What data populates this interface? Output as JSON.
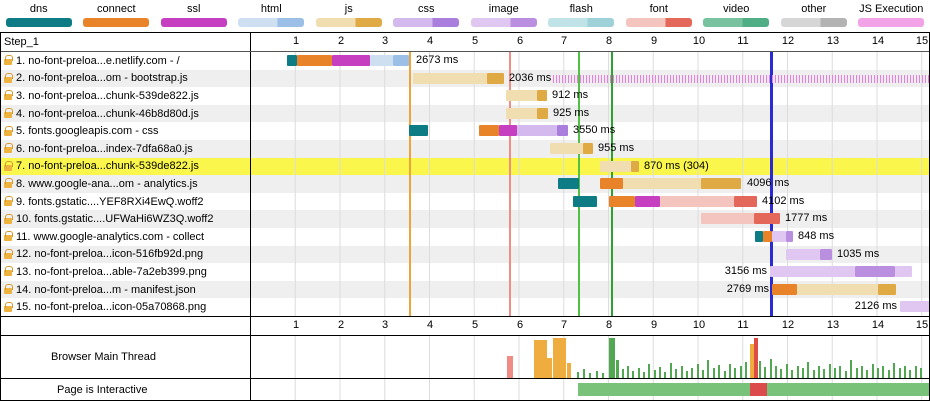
{
  "step_label": "Step_1",
  "labels": {
    "main_thread": "Browser Main Thread",
    "interactive": "Page is Interactive"
  },
  "legend": {
    "items": [
      {
        "label": "dns",
        "light": "#0d7c84",
        "dark": "#0d7c84"
      },
      {
        "label": "connect",
        "light": "#e8832a",
        "dark": "#e8832a"
      },
      {
        "label": "ssl",
        "light": "#c63fc1",
        "dark": "#c63fc1"
      },
      {
        "label": "html",
        "light": "#cfdff2",
        "dark": "#9cbfe8"
      },
      {
        "label": "js",
        "light": "#f0ddb0",
        "dark": "#dfa943"
      },
      {
        "label": "css",
        "light": "#d3b9ee",
        "dark": "#a97edc"
      },
      {
        "label": "image",
        "light": "#dfc7f2",
        "dark": "#bb8fdf"
      },
      {
        "label": "flash",
        "light": "#bfe3e6",
        "dark": "#9fd2d8"
      },
      {
        "label": "font",
        "light": "#f4c4be",
        "dark": "#e4685a"
      },
      {
        "label": "video",
        "light": "#79c2a0",
        "dark": "#4fae86"
      },
      {
        "label": "other",
        "light": "#d6d6d6",
        "dark": "#b3b3b3"
      },
      {
        "label": "JS Execution",
        "light": "#f2a3e8",
        "dark": "#f2a3e8"
      }
    ]
  },
  "colors": {
    "dns": "#0d7c84",
    "connect": "#e8832a",
    "ssl": "#c63fc1",
    "html_l": "#cfdff2",
    "html_d": "#9cbfe8",
    "js_l": "#f0ddb0",
    "js_d": "#dfa943",
    "css_l": "#d3b9ee",
    "css_d": "#a97edc",
    "img_l": "#dfc7f2",
    "img_d": "#bb8fdf",
    "font_l": "#f4c4be",
    "font_d": "#e4685a",
    "exec": "#f07ae3",
    "orange": "#f0ad3f",
    "green": "#51a851",
    "salmon": "#ef8d85",
    "red": "#de4d44",
    "igreen": "#79c279",
    "ired": "#dc4b4b"
  },
  "chart_data": {
    "type": "bar",
    "x_axis_unit": "seconds",
    "x_ticks": [
      1,
      2,
      3,
      4,
      5,
      6,
      7,
      8,
      9,
      10,
      11,
      12,
      13,
      14,
      15
    ],
    "requests": [
      {
        "label": "1. no-font-preloa...e.netlify.com - /",
        "time": "2673 ms",
        "ms": 2673,
        "label_t": 3.62,
        "segments": [
          {
            "t0": 0.8,
            "t1": 1.02,
            "c": "dns"
          },
          {
            "t0": 1.02,
            "t1": 1.8,
            "c": "connect"
          },
          {
            "t0": 1.8,
            "t1": 2.65,
            "c": "ssl"
          },
          {
            "t0": 2.65,
            "t1": 3.18,
            "c": "html_l"
          },
          {
            "t0": 3.18,
            "t1": 3.52,
            "c": "html_d"
          }
        ]
      },
      {
        "label": "2. no-font-preloa...om - bootstrap.js",
        "time": "2036 ms",
        "ms": 2036,
        "label_t": 5.7,
        "segments": [
          {
            "t0": 3.62,
            "t1": 5.28,
            "c": "js_l"
          },
          {
            "t0": 5.28,
            "t1": 5.66,
            "c": "js_d"
          },
          {
            "t0": 6.75,
            "t1": 15.2,
            "c": "exec"
          }
        ]
      },
      {
        "label": "3. no-font-preloa...chunk-539de822.js",
        "time": "912 ms",
        "ms": 912,
        "label_t": 6.66,
        "segments": [
          {
            "t0": 5.7,
            "t1": 6.38,
            "c": "js_l"
          },
          {
            "t0": 6.38,
            "t1": 6.61,
            "c": "js_d"
          }
        ]
      },
      {
        "label": "4. no-font-preloa...chunk-46b8d80d.js",
        "time": "925 ms",
        "ms": 925,
        "label_t": 6.68,
        "segments": [
          {
            "t0": 5.7,
            "t1": 6.4,
            "c": "js_l"
          },
          {
            "t0": 6.4,
            "t1": 6.63,
            "c": "js_d"
          }
        ]
      },
      {
        "label": "5. fonts.googleapis.com - css",
        "time": "3550 ms",
        "ms": 3550,
        "label_t": 7.12,
        "segments": [
          {
            "t0": 3.53,
            "t1": 3.95,
            "c": "dns"
          },
          {
            "t0": 5.1,
            "t1": 5.55,
            "c": "connect"
          },
          {
            "t0": 5.55,
            "t1": 5.95,
            "c": "ssl"
          },
          {
            "t0": 5.95,
            "t1": 6.83,
            "c": "css_l"
          },
          {
            "t0": 6.83,
            "t1": 7.08,
            "c": "css_d"
          }
        ]
      },
      {
        "label": "6. no-font-preloa...index-7dfa68a0.js",
        "time": "955 ms",
        "ms": 955,
        "label_t": 7.68,
        "segments": [
          {
            "t0": 6.68,
            "t1": 7.42,
            "c": "js_l"
          },
          {
            "t0": 7.42,
            "t1": 7.64,
            "c": "js_d"
          }
        ]
      },
      {
        "label": "7. no-font-preloa...chunk-539de822.js",
        "time": "870 ms (304)",
        "ms": 870,
        "label_t": 8.72,
        "highlight": true,
        "segments": [
          {
            "t0": 7.8,
            "t1": 8.5,
            "c": "js_l"
          },
          {
            "t0": 8.5,
            "t1": 8.67,
            "c": "js_d"
          }
        ]
      },
      {
        "label": "8. www.google-ana...om - analytics.js",
        "time": "4096 ms",
        "ms": 4096,
        "label_t": 11.02,
        "segments": [
          {
            "t0": 6.85,
            "t1": 7.33,
            "c": "dns"
          },
          {
            "t0": 7.8,
            "t1": 8.32,
            "c": "connect"
          },
          {
            "t0": 8.32,
            "t1": 10.05,
            "c": "js_l"
          },
          {
            "t0": 10.05,
            "t1": 10.95,
            "c": "js_d"
          }
        ]
      },
      {
        "label": "9. fonts.gstatic....YEF8RXi4EwQ.woff2",
        "time": "4102 ms",
        "ms": 4102,
        "label_t": 11.35,
        "segments": [
          {
            "t0": 7.2,
            "t1": 7.74,
            "c": "dns"
          },
          {
            "t0": 8.0,
            "t1": 8.58,
            "c": "connect"
          },
          {
            "t0": 8.58,
            "t1": 9.14,
            "c": "ssl"
          },
          {
            "t0": 9.14,
            "t1": 10.8,
            "c": "font_l"
          },
          {
            "t0": 10.8,
            "t1": 11.3,
            "c": "font_d"
          }
        ]
      },
      {
        "label": "10. fonts.gstatic....UFWaHi6WZ3Q.woff2",
        "time": "1777 ms",
        "ms": 1777,
        "label_t": 11.87,
        "segments": [
          {
            "t0": 10.05,
            "t1": 11.25,
            "c": "font_l"
          },
          {
            "t0": 11.25,
            "t1": 11.83,
            "c": "font_d"
          }
        ]
      },
      {
        "label": "11. www.google-analytics.com - collect",
        "time": "848 ms",
        "ms": 848,
        "label_t": 12.15,
        "segments": [
          {
            "t0": 11.27,
            "t1": 11.45,
            "c": "dns"
          },
          {
            "t0": 11.45,
            "t1": 11.65,
            "c": "connect"
          },
          {
            "t0": 11.65,
            "t1": 11.95,
            "c": "img_l"
          },
          {
            "t0": 11.95,
            "t1": 12.12,
            "c": "img_d"
          }
        ]
      },
      {
        "label": "12. no-font-preloa...icon-516fb92d.png",
        "time": "1035 ms",
        "ms": 1035,
        "label_t": 13.02,
        "segments": [
          {
            "t0": 11.95,
            "t1": 12.72,
            "c": "img_l"
          },
          {
            "t0": 12.72,
            "t1": 12.99,
            "c": "img_d"
          }
        ]
      },
      {
        "label": "13. no-font-preloa...able-7a2eb399.png",
        "time": "3156 ms",
        "ms": 3156,
        "label_t": 11.6,
        "label_before": true,
        "segments": [
          {
            "t0": 11.6,
            "t1": 13.5,
            "c": "img_l"
          },
          {
            "t0": 13.5,
            "t1": 14.4,
            "c": "img_d"
          },
          {
            "t0": 14.4,
            "t1": 14.76,
            "c": "img_l"
          }
        ]
      },
      {
        "label": "14. no-font-preloa...m - manifest.json",
        "time": "2769 ms",
        "ms": 2769,
        "label_t": 11.65,
        "label_before": true,
        "segments": [
          {
            "t0": 11.65,
            "t1": 12.2,
            "c": "connect"
          },
          {
            "t0": 12.2,
            "t1": 14.0,
            "c": "js_l"
          },
          {
            "t0": 14.0,
            "t1": 14.42,
            "c": "js_d"
          }
        ]
      },
      {
        "label": "15. no-font-preloa...icon-05a70868.png",
        "time": "2126 ms",
        "ms": 2126,
        "label_t": 14.5,
        "label_before": true,
        "segments": [
          {
            "t0": 14.5,
            "t1": 15.2,
            "c": "img_l"
          }
        ]
      }
    ],
    "events": [
      {
        "t": 3.53,
        "color": "#eea33c",
        "w": 2
      },
      {
        "t": 5.77,
        "color": "#f08d86",
        "w": 2
      },
      {
        "t": 7.31,
        "color": "#52c143",
        "w": 2
      },
      {
        "t": 8.05,
        "color": "#2ca32c",
        "w": 2
      },
      {
        "t": 11.6,
        "color": "#2b2bd6",
        "w": 3
      }
    ],
    "main_thread_bars": [
      [
        5.72,
        0.14,
        0.55,
        "salmon"
      ],
      [
        6.33,
        0.28,
        0.95,
        "orange"
      ],
      [
        6.62,
        0.12,
        0.5,
        "orange"
      ],
      [
        6.75,
        0.3,
        1.0,
        "orange"
      ],
      [
        7.06,
        0.1,
        0.38,
        "orange"
      ],
      [
        7.28,
        0.05,
        0.15,
        "green"
      ],
      [
        7.42,
        0.05,
        0.22,
        "green"
      ],
      [
        7.56,
        0.05,
        0.12,
        "green"
      ],
      [
        7.7,
        0.05,
        0.18,
        "green"
      ],
      [
        7.84,
        0.05,
        0.12,
        "green"
      ],
      [
        8.0,
        0.13,
        1.0,
        "green"
      ],
      [
        8.15,
        0.07,
        0.45,
        "green"
      ],
      [
        8.28,
        0.05,
        0.22,
        "green"
      ],
      [
        8.4,
        0.05,
        0.3,
        "green"
      ],
      [
        8.52,
        0.05,
        0.18,
        "green"
      ],
      [
        8.64,
        0.05,
        0.26,
        "green"
      ],
      [
        8.76,
        0.05,
        0.15,
        "green"
      ],
      [
        8.88,
        0.05,
        0.34,
        "green"
      ],
      [
        9.0,
        0.05,
        0.2,
        "green"
      ],
      [
        9.12,
        0.05,
        0.28,
        "green"
      ],
      [
        9.24,
        0.05,
        0.16,
        "green"
      ],
      [
        9.36,
        0.05,
        0.38,
        "green"
      ],
      [
        9.48,
        0.05,
        0.22,
        "green"
      ],
      [
        9.6,
        0.05,
        0.3,
        "green"
      ],
      [
        9.72,
        0.05,
        0.18,
        "green"
      ],
      [
        9.84,
        0.05,
        0.26,
        "green"
      ],
      [
        9.96,
        0.05,
        0.34,
        "green"
      ],
      [
        10.08,
        0.05,
        0.2,
        "green"
      ],
      [
        10.2,
        0.05,
        0.44,
        "green"
      ],
      [
        10.32,
        0.05,
        0.24,
        "green"
      ],
      [
        10.44,
        0.05,
        0.32,
        "green"
      ],
      [
        10.56,
        0.05,
        0.18,
        "green"
      ],
      [
        10.68,
        0.05,
        0.36,
        "green"
      ],
      [
        10.8,
        0.05,
        0.24,
        "green"
      ],
      [
        10.92,
        0.05,
        0.3,
        "green"
      ],
      [
        11.04,
        0.05,
        0.4,
        "green"
      ],
      [
        11.15,
        0.09,
        0.85,
        "orange"
      ],
      [
        11.25,
        0.08,
        1.0,
        "red"
      ],
      [
        11.35,
        0.05,
        0.42,
        "green"
      ],
      [
        11.47,
        0.05,
        0.28,
        "green"
      ],
      [
        11.59,
        0.05,
        0.48,
        "green"
      ],
      [
        11.71,
        0.05,
        0.3,
        "green"
      ],
      [
        11.83,
        0.05,
        0.22,
        "green"
      ],
      [
        11.95,
        0.05,
        0.34,
        "green"
      ],
      [
        12.07,
        0.05,
        0.2,
        "green"
      ],
      [
        12.19,
        0.05,
        0.3,
        "green"
      ],
      [
        12.31,
        0.05,
        0.24,
        "green"
      ],
      [
        12.43,
        0.05,
        0.4,
        "green"
      ],
      [
        12.55,
        0.05,
        0.2,
        "green"
      ],
      [
        12.67,
        0.05,
        0.3,
        "green"
      ],
      [
        12.79,
        0.05,
        0.22,
        "green"
      ],
      [
        12.91,
        0.05,
        0.34,
        "green"
      ],
      [
        13.03,
        0.05,
        0.24,
        "green"
      ],
      [
        13.15,
        0.05,
        0.3,
        "green"
      ],
      [
        13.27,
        0.05,
        0.18,
        "green"
      ],
      [
        13.39,
        0.05,
        0.44,
        "green"
      ],
      [
        13.51,
        0.05,
        0.24,
        "green"
      ],
      [
        13.63,
        0.05,
        0.3,
        "green"
      ],
      [
        13.75,
        0.05,
        0.2,
        "green"
      ],
      [
        13.87,
        0.05,
        0.34,
        "green"
      ],
      [
        13.99,
        0.05,
        0.24,
        "green"
      ],
      [
        14.11,
        0.05,
        0.3,
        "green"
      ],
      [
        14.23,
        0.05,
        0.2,
        "green"
      ],
      [
        14.35,
        0.05,
        0.38,
        "green"
      ],
      [
        14.47,
        0.05,
        0.24,
        "green"
      ],
      [
        14.59,
        0.05,
        0.3,
        "green"
      ],
      [
        14.71,
        0.05,
        0.2,
        "green"
      ],
      [
        14.83,
        0.05,
        0.3,
        "green"
      ],
      [
        14.95,
        0.05,
        0.24,
        "green"
      ]
    ],
    "interactive_segments": [
      [
        7.3,
        11.16,
        "igreen"
      ],
      [
        11.16,
        11.52,
        "ired"
      ],
      [
        11.52,
        15.2,
        "igreen"
      ]
    ]
  }
}
